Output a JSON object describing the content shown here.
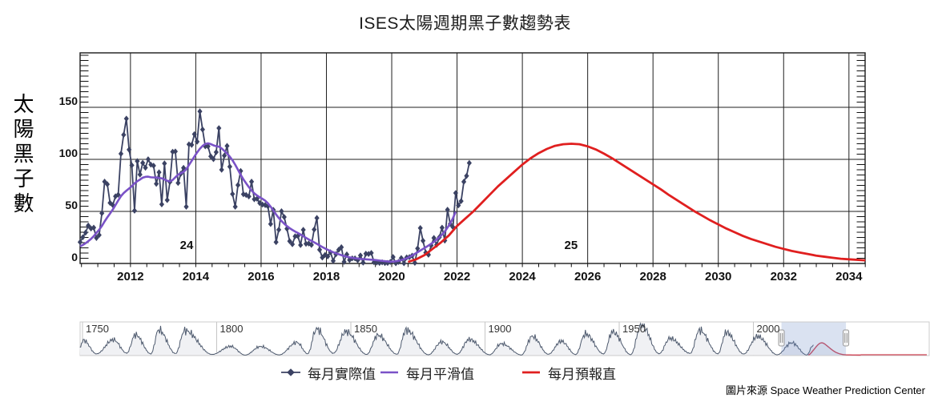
{
  "page": {
    "title": "ISES太陽週期黑子數趨勢表",
    "source_note": "圖片來源 Space Weather Prediction Center"
  },
  "chart_data": {
    "type": "line",
    "title": "ISES太陽週期黑子數趨勢表",
    "ylabel": "太陽黑子數",
    "xlim": [
      2010.45,
      2034.5
    ],
    "ylim": [
      0,
      200
    ],
    "grid": true,
    "y_ticks": [
      0,
      50,
      100,
      150
    ],
    "x_ticks": [
      2012,
      2014,
      2016,
      2018,
      2020,
      2022,
      2024,
      2026,
      2028,
      2030,
      2032,
      2034
    ],
    "cycle_labels": [
      {
        "text": "24",
        "year": 2013.72,
        "value": 15
      },
      {
        "text": "25",
        "year": 2025.49,
        "value": 15
      }
    ],
    "series": [
      {
        "name": "每月實際值",
        "type": "line-diamond",
        "color": "#3b4263",
        "start_year": 2010.4583,
        "step_months": 1,
        "values": [
          20.5,
          25.2,
          29.6,
          36.4,
          33.6,
          34.4,
          24.5,
          27.3,
          48.3,
          78.6,
          76.1,
          58.2,
          56.1,
          64.5,
          66.0,
          105.4,
          123.6,
          139.1,
          109.3,
          94.3,
          50.7,
          98.3,
          85.4,
          96.6,
          92.0,
          100.1,
          94.9,
          93.9,
          76.5,
          87.6,
          56.8,
          96.1,
          60.9,
          78.3,
          107.3,
          107.6,
          77.3,
          86.2,
          91.8,
          54.5,
          114.4,
          113.9,
          124.2,
          117.0,
          146.1,
          128.7,
          112.5,
          112.5,
          102.9,
          100.2,
          106.9,
          130.0,
          90.0,
          103.6,
          112.9,
          93.0,
          66.7,
          54.5,
          75.3,
          88.8,
          66.5,
          65.8,
          64.4,
          78.6,
          61.7,
          62.2,
          58.0,
          56.6,
          56.1,
          54.9,
          37.9,
          51.5,
          20.5,
          32.4,
          50.2,
          44.6,
          33.4,
          21.4,
          18.5,
          26.1,
          26.4,
          17.7,
          32.3,
          18.9,
          19.2,
          17.8,
          32.6,
          43.7,
          13.2,
          5.7,
          8.2,
          6.8,
          10.7,
          2.5,
          8.9,
          13.1,
          15.6,
          1.6,
          8.7,
          3.3,
          4.9,
          4.9,
          3.1,
          7.7,
          0.8,
          9.4,
          9.1,
          10.1,
          1.2,
          0.9,
          0.5,
          1.1,
          0.4,
          0.5,
          1.5,
          6.2,
          0.2,
          1.5,
          5.2,
          0.2,
          5.8,
          6.1,
          7.5,
          0.6,
          14.4,
          34.0,
          21.8,
          10.4,
          8.4,
          17.3,
          24.5,
          17.9,
          25.2,
          34.4,
          22.0,
          51.6,
          37.9,
          34.9,
          67.7,
          55.8,
          59.9,
          78.5,
          84.1,
          96.5
        ]
      },
      {
        "name": "每月平滑值",
        "type": "line",
        "color": "#7a52c7",
        "start_year": 2010.4583,
        "step_months": 1,
        "values": [
          16.4,
          17.8,
          19.4,
          21.4,
          23.6,
          26.2,
          29.4,
          32.4,
          36.0,
          40.4,
          44.3,
          48.0,
          51.8,
          56.1,
          60.5,
          64.6,
          67.6,
          69.9,
          72.0,
          74.2,
          77.0,
          79.0,
          80.6,
          82.4,
          83.2,
          83.4,
          82.8,
          82.6,
          82.7,
          82.1,
          81.8,
          80.8,
          79.4,
          78.9,
          80.2,
          82.8,
          85.2,
          86.7,
          87.9,
          90.5,
          94.6,
          98.6,
          102.7,
          106.7,
          110.2,
          112.9,
          114.8,
          115.4,
          114.7,
          113.5,
          112.7,
          112.2,
          110.5,
          108.1,
          105.6,
          102.6,
          99.1,
          94.8,
          90.0,
          85.2,
          80.8,
          77.0,
          73.4,
          70.1,
          67.4,
          65.3,
          63.6,
          62.1,
          60.3,
          57.8,
          54.6,
          50.9,
          47.1,
          43.7,
          40.8,
          38.2,
          35.9,
          33.9,
          32.2,
          30.7,
          29.3,
          27.8,
          26.2,
          24.6,
          23.1,
          21.7,
          20.3,
          18.8,
          17.3,
          15.8,
          14.4,
          13.1,
          11.9,
          10.8,
          9.8,
          8.9,
          8.0,
          7.2,
          6.5,
          5.9,
          5.4,
          5.0,
          4.7,
          4.4,
          4.2,
          4.0,
          3.8,
          3.6,
          3.4,
          3.1,
          2.8,
          2.5,
          2.2,
          2.0,
          1.8,
          1.8,
          2.1,
          2.6,
          3.2,
          4.0,
          5.0,
          6.2,
          7.6,
          9.2,
          10.8,
          12.4,
          14.0,
          15.6,
          17.2,
          18.9,
          20.8,
          22.9,
          25.2,
          27.8,
          30.7,
          34.5,
          38.5,
          43.5,
          49.5
        ]
      },
      {
        "name": "每月預報直",
        "type": "line",
        "color": "#e01f1f",
        "points": [
          [
            2020.5,
            1.5
          ],
          [
            2020.75,
            4
          ],
          [
            2021,
            8
          ],
          [
            2021.25,
            14
          ],
          [
            2021.5,
            20
          ],
          [
            2021.75,
            27
          ],
          [
            2022,
            36
          ],
          [
            2022.25,
            43
          ],
          [
            2022.5,
            50
          ],
          [
            2022.75,
            58
          ],
          [
            2023,
            66
          ],
          [
            2023.25,
            74
          ],
          [
            2023.5,
            81
          ],
          [
            2023.75,
            88
          ],
          [
            2024,
            95
          ],
          [
            2024.25,
            101
          ],
          [
            2024.5,
            106
          ],
          [
            2024.75,
            110
          ],
          [
            2025,
            113
          ],
          [
            2025.25,
            114.5
          ],
          [
            2025.5,
            115
          ],
          [
            2025.75,
            114.5
          ],
          [
            2026,
            112.5
          ],
          [
            2026.25,
            109.5
          ],
          [
            2026.5,
            105.5
          ],
          [
            2026.75,
            101
          ],
          [
            2027,
            96
          ],
          [
            2027.25,
            91
          ],
          [
            2027.5,
            86
          ],
          [
            2027.75,
            81
          ],
          [
            2028,
            76
          ],
          [
            2028.25,
            71
          ],
          [
            2028.5,
            65.5
          ],
          [
            2028.75,
            60.5
          ],
          [
            2029,
            55.5
          ],
          [
            2029.25,
            50.5
          ],
          [
            2029.5,
            46
          ],
          [
            2029.75,
            41.5
          ],
          [
            2030,
            37.5
          ],
          [
            2030.25,
            33.5
          ],
          [
            2030.5,
            30
          ],
          [
            2030.75,
            26.5
          ],
          [
            2031,
            23.5
          ],
          [
            2031.25,
            21
          ],
          [
            2031.5,
            18.5
          ],
          [
            2031.75,
            16
          ],
          [
            2032,
            14
          ],
          [
            2032.25,
            12
          ],
          [
            2032.5,
            10.5
          ],
          [
            2032.75,
            9
          ],
          [
            2033,
            7.5
          ],
          [
            2033.25,
            6.5
          ],
          [
            2033.5,
            5.5
          ],
          [
            2033.75,
            4.5
          ],
          [
            2034,
            4
          ],
          [
            2034.25,
            3.5
          ],
          [
            2034.5,
            3
          ]
        ]
      }
    ],
    "navigator": {
      "year_ticks": [
        1750,
        1800,
        1850,
        1900,
        1950,
        2000
      ],
      "range": [
        1749,
        2066
      ],
      "selection": [
        2010.46,
        2034.5
      ],
      "historical_anchors": [
        [
          1749,
          70
        ],
        [
          1750.3,
          140
        ],
        [
          1755.2,
          12
        ],
        [
          1761.5,
          144
        ],
        [
          1766.5,
          19
        ],
        [
          1769.7,
          190
        ],
        [
          1775.5,
          12
        ],
        [
          1778.4,
          235
        ],
        [
          1784.7,
          15
        ],
        [
          1788.1,
          230
        ],
        [
          1798.3,
          7
        ],
        [
          1805.2,
          82
        ],
        [
          1810.6,
          1
        ],
        [
          1816.4,
          81
        ],
        [
          1823.3,
          3
        ],
        [
          1829.9,
          119
        ],
        [
          1833.9,
          13
        ],
        [
          1837.2,
          245
        ],
        [
          1843.5,
          18
        ],
        [
          1848.1,
          220
        ],
        [
          1855.9,
          7
        ],
        [
          1860.1,
          186
        ],
        [
          1867.2,
          9
        ],
        [
          1870.6,
          234
        ],
        [
          1878.9,
          4
        ],
        [
          1883.9,
          124
        ],
        [
          1889.6,
          9
        ],
        [
          1894.1,
          147
        ],
        [
          1901.7,
          4
        ],
        [
          1906.1,
          107
        ],
        [
          1913.6,
          2
        ],
        [
          1917.6,
          175
        ],
        [
          1923.6,
          9
        ],
        [
          1928.4,
          130
        ],
        [
          1933.8,
          6
        ],
        [
          1937.4,
          198
        ],
        [
          1944.2,
          12
        ],
        [
          1947.5,
          218
        ],
        [
          1954.3,
          5
        ],
        [
          1958.3,
          285
        ],
        [
          1964.9,
          14
        ],
        [
          1968.9,
          157
        ],
        [
          1976.5,
          17
        ],
        [
          1979.9,
          233
        ],
        [
          1986.8,
          13
        ],
        [
          1989.9,
          213
        ],
        [
          1996.4,
          11
        ],
        [
          2001.5,
          175
        ],
        [
          2008.9,
          4
        ],
        [
          2014.3,
          116
        ],
        [
          2019.9,
          2
        ],
        [
          2022.37,
          96
        ]
      ],
      "forecast_tail": [
        [
          2035,
          2.5
        ],
        [
          2036,
          2
        ],
        [
          2037,
          1.5
        ],
        [
          2038,
          1.2
        ],
        [
          2039,
          1
        ],
        [
          2040,
          1
        ]
      ]
    }
  }
}
